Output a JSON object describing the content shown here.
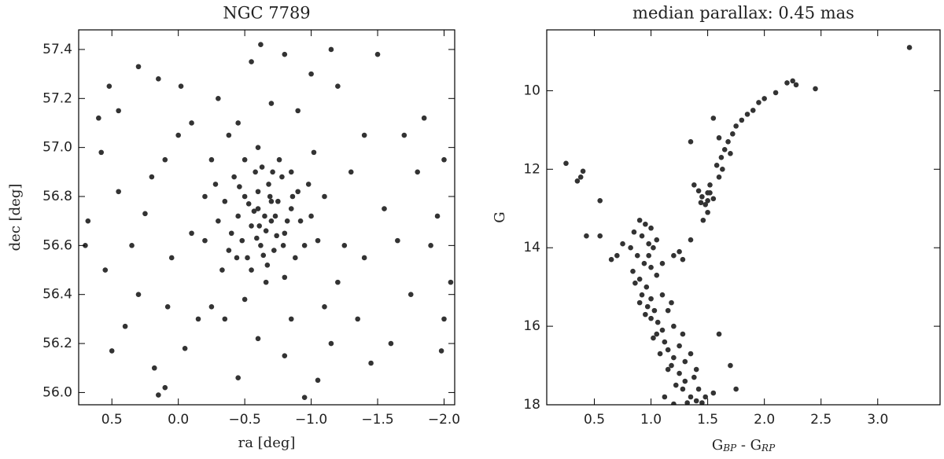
{
  "chart_data": [
    {
      "type": "scatter",
      "title": "NGC 7789",
      "xlabel": "ra [deg]",
      "ylabel": "dec [deg]",
      "color": "#333333",
      "xlim": [
        0.75,
        -2.08
      ],
      "ylim": [
        55.95,
        57.48
      ],
      "xticks": [
        {
          "value": 0.5,
          "label": "0.5"
        },
        {
          "value": 0,
          "label": "0.0"
        },
        {
          "value": -0.5,
          "label": "−0.5"
        },
        {
          "value": -1,
          "label": "−1.0"
        },
        {
          "value": -1.5,
          "label": "−1.5"
        },
        {
          "value": -2,
          "label": "−2.0"
        }
      ],
      "yticks": [
        {
          "value": 56,
          "label": "56.0"
        },
        56.2,
        56.4,
        56.6,
        56.8,
        {
          "value": 57,
          "label": "57.0"
        },
        57.2,
        57.4
      ],
      "x": [
        -0.65,
        -0.6,
        -0.7,
        -0.55,
        -0.75,
        -0.5,
        -0.8,
        -0.62,
        -0.68,
        -0.45,
        -0.85,
        -0.58,
        -0.72,
        -0.4,
        -0.9,
        -0.52,
        -0.78,
        -0.66,
        -0.6,
        -0.7,
        -0.48,
        -0.82,
        -0.57,
        -0.74,
        -0.63,
        -0.35,
        -0.95,
        -0.42,
        -0.88,
        -0.55,
        -0.76,
        -1.0,
        -0.3,
        -0.67,
        -0.5,
        -0.85,
        -0.38,
        -0.92,
        -0.61,
        -0.69,
        -0.53,
        -0.79,
        -0.64,
        -0.71,
        -0.46,
        -0.86,
        -0.59,
        -0.73,
        -0.44,
        -0.98,
        -0.28,
        -1.05,
        -0.33,
        -0.8,
        -0.6,
        -1.1,
        -0.2,
        -0.66,
        -1.02,
        -0.25,
        0.68,
        0.6,
        0.52,
        0.45,
        0.3,
        0.58,
        0.45,
        0.55,
        0.5,
        0.4,
        0.7,
        0.3,
        0.2,
        0.15,
        0.1,
        0.0,
        0.05,
        0.18,
        0.1,
        -0.02,
        -0.1,
        0.25,
        0.35,
        -0.15,
        0.08,
        -0.05,
        0.15,
        -0.2,
        -0.3,
        -0.55,
        -0.62,
        -0.8,
        -1.0,
        -0.9,
        -0.45,
        -1.2,
        -1.5,
        -1.4,
        -1.3,
        -1.55,
        -1.7,
        -1.8,
        -1.95,
        -2.05,
        -1.9,
        -1.75,
        -1.6,
        -1.45,
        -1.35,
        -1.2,
        -1.15,
        -1.05,
        -0.95,
        -0.8,
        -0.6,
        -0.45,
        -0.35,
        -0.25,
        -1.15,
        -1.25,
        -1.4,
        -1.65,
        -2.0,
        -1.85,
        -0.7,
        -0.38,
        -0.1,
        -1.1,
        -0.5,
        -0.85,
        -2.0,
        -1.98
      ],
      "values": [
        56.72,
        56.75,
        56.7,
        56.68,
        56.78,
        56.8,
        56.65,
        56.6,
        56.85,
        56.72,
        56.75,
        56.9,
        56.58,
        56.65,
        56.82,
        56.55,
        56.88,
        56.66,
        56.82,
        56.78,
        56.62,
        56.7,
        56.74,
        56.64,
        56.92,
        56.78,
        56.6,
        56.88,
        56.55,
        56.5,
        56.95,
        56.72,
        56.7,
        56.52,
        56.95,
        56.9,
        56.58,
        56.7,
        56.68,
        56.8,
        56.77,
        56.6,
        56.56,
        56.9,
        56.84,
        56.8,
        56.63,
        56.72,
        56.55,
        56.85,
        56.85,
        56.62,
        56.5,
        56.47,
        57.0,
        56.8,
        56.62,
        56.45,
        56.98,
        56.95,
        56.7,
        57.12,
        57.25,
        57.15,
        57.33,
        56.98,
        56.82,
        56.5,
        56.17,
        56.27,
        56.6,
        56.4,
        56.88,
        57.28,
        56.95,
        57.05,
        56.55,
        56.1,
        56.02,
        57.25,
        57.1,
        56.73,
        56.6,
        56.3,
        56.35,
        56.18,
        55.99,
        56.8,
        57.2,
        57.35,
        57.42,
        57.38,
        57.3,
        57.15,
        57.1,
        57.25,
        57.38,
        57.05,
        56.9,
        56.75,
        57.05,
        56.9,
        56.72,
        56.45,
        56.6,
        56.4,
        56.2,
        56.12,
        56.3,
        56.45,
        56.2,
        56.05,
        55.98,
        56.15,
        56.22,
        56.06,
        56.3,
        56.35,
        57.4,
        56.6,
        56.55,
        56.62,
        56.95,
        57.12,
        57.18,
        57.05,
        56.65,
        56.35,
        56.38,
        56.3,
        56.3,
        56.17
      ]
    },
    {
      "type": "scatter",
      "title": "median parallax: 0.45 mas",
      "xlabel": [
        "G",
        "BP",
        " - G",
        "RP"
      ],
      "ylabel": "G",
      "color": "#333333",
      "xlim": [
        0.08,
        3.55
      ],
      "ylim": [
        18,
        8.45
      ],
      "xticks": [
        0.5,
        {
          "value": 1,
          "label": "1.0"
        },
        1.5,
        {
          "value": 2,
          "label": "2.0"
        },
        2.5,
        {
          "value": 3,
          "label": "3.0"
        }
      ],
      "yticks": [
        10,
        12,
        14,
        16,
        18
      ],
      "x": [
        3.28,
        2.45,
        2.25,
        2.2,
        2.28,
        2.1,
        2.0,
        1.95,
        1.9,
        1.85,
        1.8,
        1.75,
        1.72,
        1.68,
        1.65,
        1.62,
        1.58,
        1.55,
        1.6,
        1.7,
        1.63,
        1.6,
        1.52,
        1.5,
        1.45,
        1.48,
        1.55,
        1.42,
        1.5,
        1.46,
        1.35,
        1.38,
        1.5,
        1.52,
        1.44,
        0.25,
        0.4,
        0.35,
        0.38,
        0.55,
        0.43,
        0.55,
        0.7,
        0.75,
        0.65,
        1.25,
        1.2,
        1.35,
        1.28,
        1.7,
        1.75,
        1.55,
        1.6,
        0.9,
        0.95,
        1.0,
        0.92,
        0.98,
        1.02,
        0.88,
        0.94,
        1.0,
        0.9,
        0.96,
        0.92,
        1.0,
        0.97,
        1.03,
        1.0,
        1.06,
        1.1,
        1.05,
        1.12,
        1.15,
        1.2,
        1.18,
        1.25,
        1.3,
        1.28,
        1.35,
        1.4,
        1.45,
        1.32,
        1.22,
        1.15,
        1.08,
        1.02,
        0.95,
        0.9,
        0.86,
        0.84,
        0.98,
        1.05,
        1.1,
        1.15,
        1.2,
        1.25,
        1.3,
        1.38,
        1.42,
        1.48,
        0.85,
        1.05,
        0.82,
        1.1,
        1.18,
        1.28,
        1.35,
        1.4,
        1.12,
        1.2
      ],
      "values": [
        8.9,
        9.95,
        9.75,
        9.8,
        9.85,
        10.05,
        10.2,
        10.3,
        10.5,
        10.6,
        10.75,
        10.9,
        11.1,
        11.3,
        11.5,
        11.7,
        11.9,
        10.7,
        11.2,
        11.6,
        12.0,
        12.2,
        12.4,
        12.6,
        12.7,
        12.9,
        12.75,
        12.55,
        13.1,
        13.3,
        11.3,
        12.4,
        12.8,
        12.6,
        12.85,
        11.85,
        12.05,
        12.3,
        12.2,
        12.8,
        13.7,
        13.7,
        14.2,
        13.9,
        14.3,
        14.1,
        14.2,
        13.8,
        14.3,
        17.0,
        17.6,
        17.7,
        16.2,
        13.3,
        13.4,
        13.5,
        13.7,
        13.9,
        14.0,
        14.2,
        14.4,
        14.5,
        14.8,
        15.0,
        15.2,
        15.3,
        15.5,
        15.6,
        15.8,
        15.9,
        16.1,
        16.2,
        16.4,
        16.6,
        16.8,
        17.0,
        17.2,
        17.4,
        17.6,
        17.8,
        17.9,
        17.95,
        17.95,
        17.5,
        17.1,
        16.7,
        16.3,
        15.7,
        15.4,
        14.9,
        14.6,
        14.2,
        14.7,
        15.2,
        15.6,
        16.0,
        16.5,
        16.9,
        17.3,
        17.6,
        17.8,
        13.6,
        13.8,
        14.0,
        14.4,
        15.4,
        16.2,
        16.7,
        17.1,
        17.8,
        17.98
      ]
    }
  ]
}
